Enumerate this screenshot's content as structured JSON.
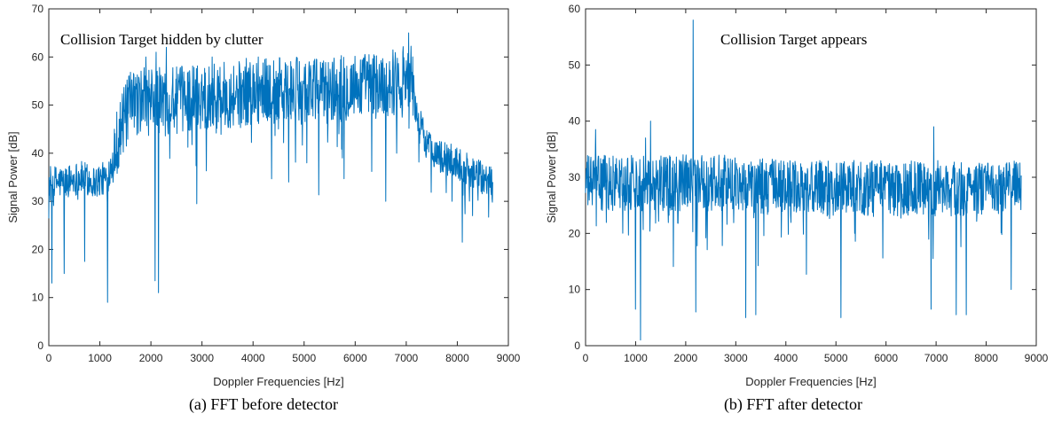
{
  "chart_data": [
    {
      "type": "line",
      "id": "a",
      "caption": "(a) FFT before detector",
      "annotation": "Collision Target hidden by clutter",
      "xlabel": "Doppler Frequencies [Hz]",
      "ylabel": "Signal Power [dB]",
      "xlim": [
        0,
        9000
      ],
      "ylim": [
        0,
        70
      ],
      "xticks": [
        0,
        1000,
        2000,
        3000,
        4000,
        5000,
        6000,
        7000,
        8000,
        9000
      ],
      "yticks": [
        0,
        10,
        20,
        30,
        40,
        50,
        60,
        70
      ],
      "grid": false,
      "color": "#0072bd",
      "series": [
        {
          "x": [
            0,
            300,
            600,
            900,
            1150,
            1250,
            1400,
            1600,
            1800,
            2000,
            2200,
            2500,
            3000,
            3500,
            4000,
            4500,
            5000,
            5500,
            6000,
            6500,
            6800,
            7050,
            7100,
            7200,
            7400,
            7700,
            8000,
            8300,
            8600,
            8700
          ],
          "values": [
            34,
            34,
            35,
            34,
            35,
            39,
            45,
            50,
            51,
            51,
            51,
            51,
            52,
            52,
            53,
            53,
            53,
            53,
            54,
            54,
            55,
            57,
            56,
            48,
            42,
            39,
            38,
            36,
            34,
            34
          ],
          "dips": [
            [
              60,
              13
            ],
            [
              300,
              15
            ],
            [
              700,
              17.5
            ],
            [
              1150,
              9
            ],
            [
              2080,
              13.5
            ],
            [
              2150,
              11
            ],
            [
              2900,
              29.5
            ],
            [
              4700,
              34
            ],
            [
              5050,
              38
            ],
            [
              5750,
              39
            ],
            [
              6600,
              30
            ],
            [
              8100,
              21.5
            ],
            [
              8300,
              27
            ],
            [
              7900,
              30
            ]
          ],
          "peaks": [
            [
              1900,
              60
            ],
            [
              2100,
              61
            ],
            [
              2300,
              62
            ],
            [
              3200,
              60
            ],
            [
              4100,
              60
            ],
            [
              5100,
              59
            ],
            [
              6200,
              60
            ],
            [
              7050,
              65
            ]
          ]
        }
      ]
    },
    {
      "type": "line",
      "id": "b",
      "caption": "(b) FFT after detector",
      "annotation": "Collision Target appears",
      "xlabel": "Doppler Frequencies [Hz]",
      "ylabel": "Signal Power [dB]",
      "xlim": [
        0,
        9000
      ],
      "ylim": [
        0,
        60
      ],
      "xticks": [
        0,
        1000,
        2000,
        3000,
        4000,
        5000,
        6000,
        7000,
        8000,
        9000
      ],
      "yticks": [
        0,
        10,
        20,
        30,
        40,
        50,
        60
      ],
      "grid": false,
      "color": "#0072bd",
      "series": [
        {
          "x": [
            0,
            1000,
            2000,
            3000,
            4000,
            5000,
            6000,
            7000,
            8000,
            8700
          ],
          "values": [
            29,
            29,
            29,
            29,
            28,
            28,
            28,
            28,
            28,
            28
          ],
          "dips": [
            [
              1000,
              6.5
            ],
            [
              1100,
              1
            ],
            [
              2200,
              6
            ],
            [
              3200,
              5
            ],
            [
              3400,
              5.5
            ],
            [
              5100,
              5
            ],
            [
              6900,
              6.5
            ],
            [
              7400,
              5.5
            ],
            [
              7600,
              5.5
            ],
            [
              8500,
              10
            ]
          ],
          "peaks": [
            [
              2150,
              58
            ],
            [
              1300,
              40
            ],
            [
              6950,
              39
            ],
            [
              200,
              38.5
            ],
            [
              1200,
              37
            ]
          ]
        }
      ]
    }
  ]
}
